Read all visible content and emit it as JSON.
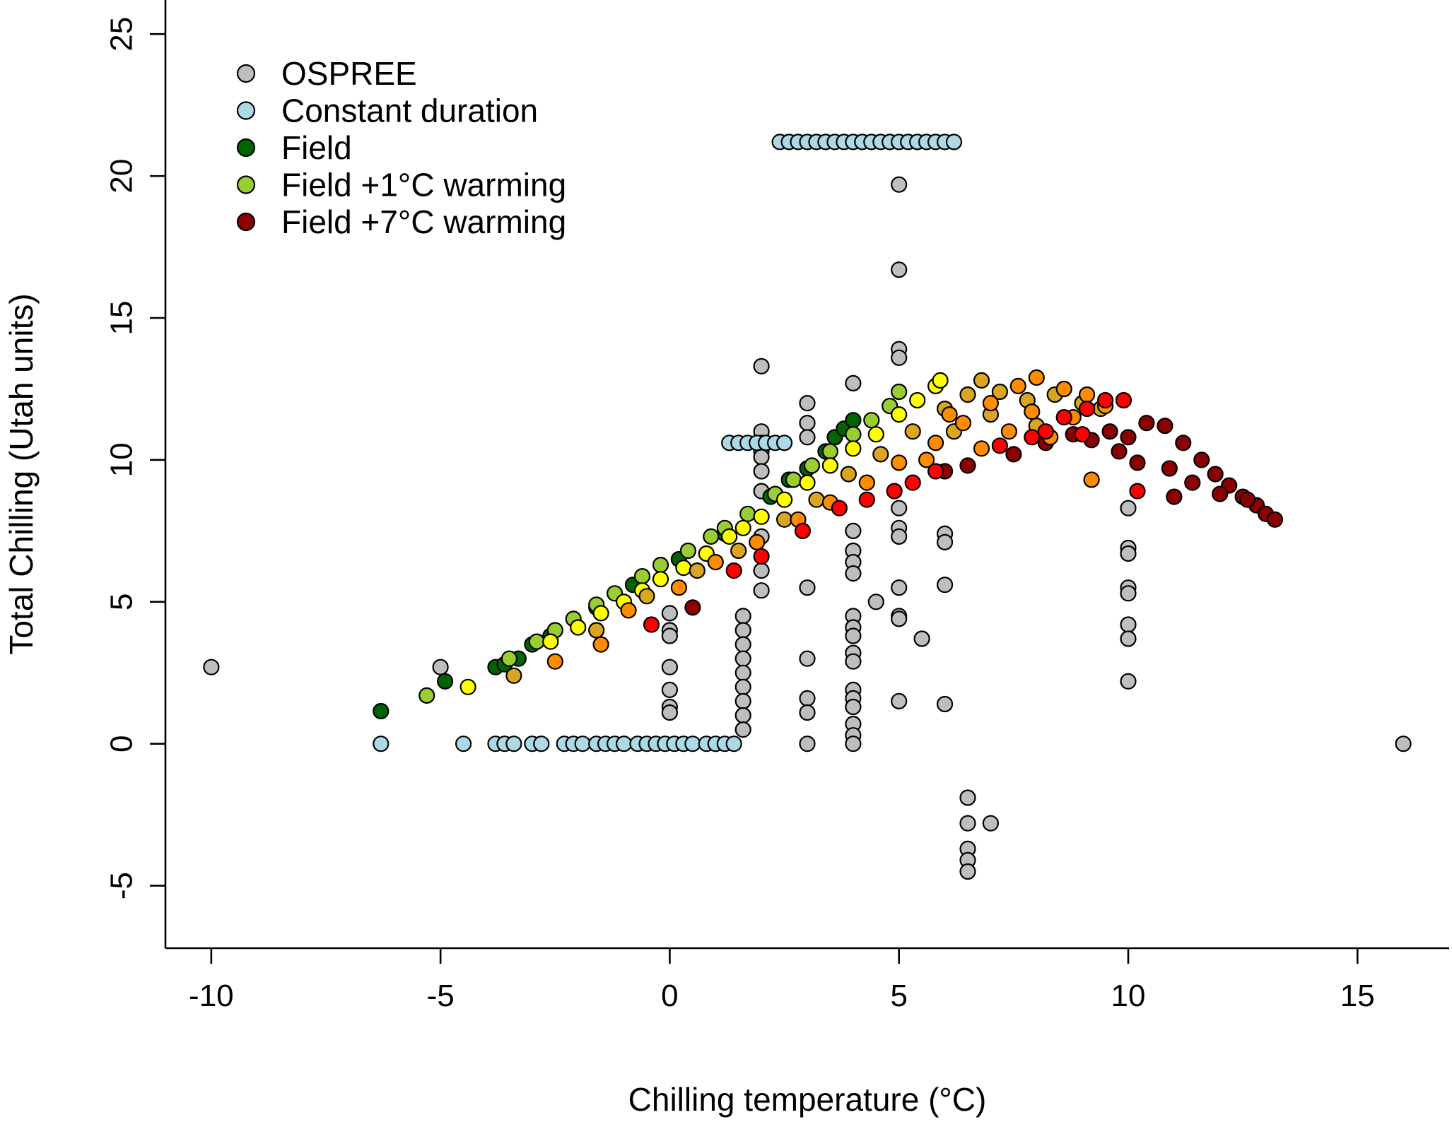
{
  "chart_data": {
    "type": "scatter",
    "xlabel": "Chilling temperature (°C)",
    "ylabel": "Total Chilling (Utah units)",
    "xlim": [
      -11,
      17
    ],
    "ylim": [
      -7.2,
      26.2
    ],
    "xticks": [
      -10,
      -5,
      0,
      5,
      10,
      15
    ],
    "yticks": [
      -5,
      0,
      5,
      10,
      15,
      20,
      25
    ],
    "legend": {
      "position": "top-left",
      "entries": [
        {
          "label": "OSPREE",
          "color": "#bebebe"
        },
        {
          "label": "Constant duration",
          "color": "#add8e6"
        },
        {
          "label": "Field",
          "color": "#006400"
        },
        {
          "label": "Field +1°C warming",
          "color": "#9acd32"
        },
        {
          "label": "Field +7°C warming",
          "color": "#8b0000"
        }
      ]
    },
    "intermediate_warming_colors": [
      "#ffff00",
      "#daa520",
      "#ff8c00",
      "#ff0000"
    ],
    "series": [
      {
        "name": "OSPREE",
        "color": "#bebebe",
        "points": [
          [
            -10,
            2.7
          ],
          [
            -5,
            2.7
          ],
          [
            0,
            4.6
          ],
          [
            0,
            4.0
          ],
          [
            0,
            3.8
          ],
          [
            0,
            2.7
          ],
          [
            0,
            1.9
          ],
          [
            0,
            1.3
          ],
          [
            0,
            1.1
          ],
          [
            1.6,
            4.5
          ],
          [
            1.6,
            4.0
          ],
          [
            1.6,
            3.5
          ],
          [
            1.6,
            3.0
          ],
          [
            1.6,
            2.5
          ],
          [
            1.6,
            2.0
          ],
          [
            1.6,
            1.5
          ],
          [
            1.6,
            1.0
          ],
          [
            1.6,
            0.5
          ],
          [
            2,
            13.3
          ],
          [
            2,
            11.0
          ],
          [
            2,
            10.6
          ],
          [
            2,
            10.3
          ],
          [
            2,
            10.1
          ],
          [
            2,
            9.6
          ],
          [
            2,
            8.9
          ],
          [
            2,
            7.3
          ],
          [
            2,
            6.1
          ],
          [
            2,
            5.4
          ],
          [
            3,
            12.0
          ],
          [
            3,
            11.3
          ],
          [
            3,
            10.8
          ],
          [
            3,
            5.5
          ],
          [
            3,
            3.0
          ],
          [
            3,
            1.6
          ],
          [
            3,
            1.1
          ],
          [
            3,
            0.0
          ],
          [
            4,
            12.7
          ],
          [
            4,
            7.5
          ],
          [
            4,
            6.8
          ],
          [
            4,
            6.4
          ],
          [
            4,
            6.0
          ],
          [
            4,
            4.5
          ],
          [
            4,
            4.1
          ],
          [
            4,
            3.8
          ],
          [
            4,
            3.2
          ],
          [
            4,
            2.9
          ],
          [
            4,
            1.9
          ],
          [
            4,
            1.6
          ],
          [
            4,
            1.3
          ],
          [
            4,
            0.7
          ],
          [
            4,
            0.3
          ],
          [
            4,
            0.0
          ],
          [
            4.5,
            5.0
          ],
          [
            5,
            19.7
          ],
          [
            5,
            16.7
          ],
          [
            5,
            13.9
          ],
          [
            5,
            13.6
          ],
          [
            5,
            8.3
          ],
          [
            5,
            7.6
          ],
          [
            5,
            7.3
          ],
          [
            5,
            5.5
          ],
          [
            5,
            4.5
          ],
          [
            5,
            4.4
          ],
          [
            5,
            1.5
          ],
          [
            5.5,
            3.7
          ],
          [
            6,
            7.4
          ],
          [
            6,
            7.1
          ],
          [
            6,
            5.6
          ],
          [
            6,
            1.4
          ],
          [
            6.5,
            -1.9
          ],
          [
            6.5,
            -2.8
          ],
          [
            6.5,
            -3.7
          ],
          [
            6.5,
            -4.1
          ],
          [
            6.5,
            -4.5
          ],
          [
            7,
            -2.8
          ],
          [
            10,
            8.3
          ],
          [
            10,
            6.9
          ],
          [
            10,
            6.7
          ],
          [
            10,
            5.5
          ],
          [
            10,
            5.3
          ],
          [
            10,
            4.2
          ],
          [
            10,
            3.7
          ],
          [
            10,
            2.2
          ],
          [
            16,
            0.0
          ]
        ]
      },
      {
        "name": "Constant duration",
        "color": "#add8e6",
        "points": [
          [
            2.4,
            21.2
          ],
          [
            2.6,
            21.2
          ],
          [
            2.8,
            21.2
          ],
          [
            3.0,
            21.2
          ],
          [
            3.2,
            21.2
          ],
          [
            3.4,
            21.2
          ],
          [
            3.6,
            21.2
          ],
          [
            3.8,
            21.2
          ],
          [
            4.0,
            21.2
          ],
          [
            4.2,
            21.2
          ],
          [
            4.4,
            21.2
          ],
          [
            4.6,
            21.2
          ],
          [
            4.8,
            21.2
          ],
          [
            5.0,
            21.2
          ],
          [
            5.2,
            21.2
          ],
          [
            5.4,
            21.2
          ],
          [
            5.6,
            21.2
          ],
          [
            5.8,
            21.2
          ],
          [
            6.0,
            21.2
          ],
          [
            6.2,
            21.2
          ],
          [
            1.3,
            10.6
          ],
          [
            1.5,
            10.6
          ],
          [
            1.7,
            10.6
          ],
          [
            1.9,
            10.6
          ],
          [
            2.1,
            10.6
          ],
          [
            2.3,
            10.6
          ],
          [
            2.5,
            10.6
          ],
          [
            -6.3,
            0.0
          ],
          [
            -4.5,
            0.0
          ],
          [
            -3.8,
            0.0
          ],
          [
            -3.6,
            0.0
          ],
          [
            -3.4,
            0.0
          ],
          [
            -3.0,
            0.0
          ],
          [
            -2.8,
            0.0
          ],
          [
            -2.3,
            0.0
          ],
          [
            -2.1,
            0.0
          ],
          [
            -1.9,
            0.0
          ],
          [
            -1.6,
            0.0
          ],
          [
            -1.4,
            0.0
          ],
          [
            -1.2,
            0.0
          ],
          [
            -1.0,
            0.0
          ],
          [
            -0.7,
            0.0
          ],
          [
            -0.5,
            0.0
          ],
          [
            -0.3,
            0.0
          ],
          [
            -0.1,
            0.0
          ],
          [
            0.1,
            0.0
          ],
          [
            0.3,
            0.0
          ],
          [
            0.5,
            0.0
          ],
          [
            0.8,
            0.0
          ],
          [
            1.0,
            0.0
          ],
          [
            1.2,
            0.0
          ],
          [
            1.4,
            0.0
          ]
        ]
      },
      {
        "name": "Field",
        "color": "#006400",
        "points": [
          [
            -6.3,
            1.15
          ],
          [
            -4.9,
            2.2
          ],
          [
            -3.8,
            2.7
          ],
          [
            -3.6,
            2.8
          ],
          [
            -3.3,
            3.0
          ],
          [
            -3.0,
            3.5
          ],
          [
            -2.6,
            3.8
          ],
          [
            -1.6,
            4.8
          ],
          [
            -0.8,
            5.6
          ],
          [
            0.2,
            6.5
          ],
          [
            1.2,
            7.4
          ],
          [
            2.2,
            8.7
          ],
          [
            2.6,
            9.3
          ],
          [
            3.0,
            9.7
          ],
          [
            3.4,
            10.3
          ],
          [
            3.6,
            10.8
          ],
          [
            3.8,
            11.1
          ],
          [
            4.0,
            11.4
          ]
        ]
      },
      {
        "name": "Field +1°C warming",
        "color": "#9acd32",
        "points": [
          [
            -5.3,
            1.7
          ],
          [
            -3.5,
            3.0
          ],
          [
            -2.9,
            3.6
          ],
          [
            -2.5,
            4.0
          ],
          [
            -2.1,
            4.4
          ],
          [
            -1.6,
            4.9
          ],
          [
            -1.2,
            5.3
          ],
          [
            -0.6,
            5.9
          ],
          [
            -0.2,
            6.3
          ],
          [
            0.4,
            6.8
          ],
          [
            0.9,
            7.3
          ],
          [
            1.2,
            7.6
          ],
          [
            1.7,
            8.1
          ],
          [
            2.3,
            8.8
          ],
          [
            2.7,
            9.3
          ],
          [
            3.1,
            9.8
          ],
          [
            3.5,
            10.3
          ],
          [
            4.0,
            10.9
          ],
          [
            4.4,
            11.4
          ],
          [
            4.8,
            11.9
          ],
          [
            5.0,
            12.4
          ]
        ]
      },
      {
        "name": "Field +7°C warming",
        "color": "#8b0000",
        "points": [
          [
            0.5,
            4.8
          ],
          [
            6.0,
            9.6
          ],
          [
            6.5,
            9.8
          ],
          [
            7.5,
            10.2
          ],
          [
            8.2,
            10.6
          ],
          [
            8.8,
            10.9
          ],
          [
            9.2,
            10.7
          ],
          [
            9.6,
            11.0
          ],
          [
            10.0,
            10.8
          ],
          [
            10.4,
            11.3
          ],
          [
            10.8,
            11.2
          ],
          [
            11.2,
            10.6
          ],
          [
            11.6,
            10.0
          ],
          [
            11.9,
            9.5
          ],
          [
            12.2,
            9.1
          ],
          [
            12.5,
            8.7
          ],
          [
            12.8,
            8.4
          ],
          [
            13.0,
            8.1
          ],
          [
            13.2,
            7.9
          ],
          [
            10.2,
            9.9
          ],
          [
            10.9,
            9.7
          ],
          [
            11.4,
            9.2
          ],
          [
            12.0,
            8.8
          ],
          [
            9.8,
            10.3
          ],
          [
            11.0,
            8.7
          ],
          [
            12.6,
            8.6
          ]
        ]
      },
      {
        "name": "",
        "color": "#ffff00",
        "points": [
          [
            -4.4,
            2.0
          ],
          [
            -2.6,
            3.6
          ],
          [
            -2.0,
            4.1
          ],
          [
            -1.5,
            4.6
          ],
          [
            -1.0,
            5.0
          ],
          [
            -0.6,
            5.4
          ],
          [
            -0.2,
            5.8
          ],
          [
            0.3,
            6.2
          ],
          [
            0.8,
            6.7
          ],
          [
            1.3,
            7.3
          ],
          [
            1.6,
            7.6
          ],
          [
            2.0,
            8.0
          ],
          [
            2.5,
            8.6
          ],
          [
            3.0,
            9.2
          ],
          [
            3.5,
            9.8
          ],
          [
            4.0,
            10.4
          ],
          [
            4.5,
            10.9
          ],
          [
            5.0,
            11.6
          ],
          [
            5.4,
            12.1
          ],
          [
            5.8,
            12.6
          ],
          [
            5.9,
            12.8
          ]
        ]
      },
      {
        "name": "",
        "color": "#daa520",
        "points": [
          [
            -3.4,
            2.4
          ],
          [
            -1.6,
            4.0
          ],
          [
            -0.5,
            5.2
          ],
          [
            0.6,
            6.1
          ],
          [
            1.5,
            6.8
          ],
          [
            2.5,
            7.9
          ],
          [
            3.2,
            8.6
          ],
          [
            3.9,
            9.5
          ],
          [
            4.6,
            10.2
          ],
          [
            5.3,
            11.0
          ],
          [
            6.0,
            11.8
          ],
          [
            6.5,
            12.3
          ],
          [
            6.8,
            12.8
          ],
          [
            7.2,
            12.4
          ],
          [
            7.8,
            12.1
          ],
          [
            8.4,
            12.3
          ],
          [
            9.0,
            12.0
          ],
          [
            6.2,
            11.0
          ],
          [
            7.0,
            11.6
          ],
          [
            8.0,
            11.2
          ],
          [
            9.4,
            11.8
          ]
        ]
      },
      {
        "name": "",
        "color": "#ff8c00",
        "points": [
          [
            -2.5,
            2.9
          ],
          [
            -1.5,
            3.5
          ],
          [
            -0.9,
            4.7
          ],
          [
            0.2,
            5.5
          ],
          [
            1.0,
            6.4
          ],
          [
            1.9,
            7.1
          ],
          [
            2.8,
            7.9
          ],
          [
            3.5,
            8.5
          ],
          [
            4.3,
            9.2
          ],
          [
            5.0,
            9.9
          ],
          [
            5.8,
            10.6
          ],
          [
            6.4,
            11.3
          ],
          [
            7.0,
            12.0
          ],
          [
            7.6,
            12.6
          ],
          [
            8.0,
            12.9
          ],
          [
            8.6,
            12.5
          ],
          [
            9.1,
            12.3
          ],
          [
            9.5,
            11.9
          ],
          [
            7.4,
            11.0
          ],
          [
            8.3,
            10.8
          ],
          [
            9.2,
            9.3
          ],
          [
            6.8,
            10.4
          ],
          [
            5.6,
            10.0
          ],
          [
            8.8,
            11.5
          ],
          [
            7.9,
            11.7
          ],
          [
            6.1,
            11.6
          ]
        ]
      },
      {
        "name": "",
        "color": "#ff0000",
        "points": [
          [
            -0.4,
            4.2
          ],
          [
            1.4,
            6.1
          ],
          [
            2.0,
            6.6
          ],
          [
            2.9,
            7.5
          ],
          [
            3.7,
            8.3
          ],
          [
            4.3,
            8.6
          ],
          [
            4.9,
            8.9
          ],
          [
            5.3,
            9.2
          ],
          [
            5.8,
            9.6
          ],
          [
            7.9,
            10.8
          ],
          [
            8.6,
            11.5
          ],
          [
            9.1,
            11.8
          ],
          [
            9.5,
            12.1
          ],
          [
            9.9,
            12.1
          ],
          [
            10.2,
            8.9
          ],
          [
            9.0,
            10.9
          ],
          [
            7.2,
            10.5
          ],
          [
            8.2,
            11.0
          ]
        ]
      }
    ]
  }
}
